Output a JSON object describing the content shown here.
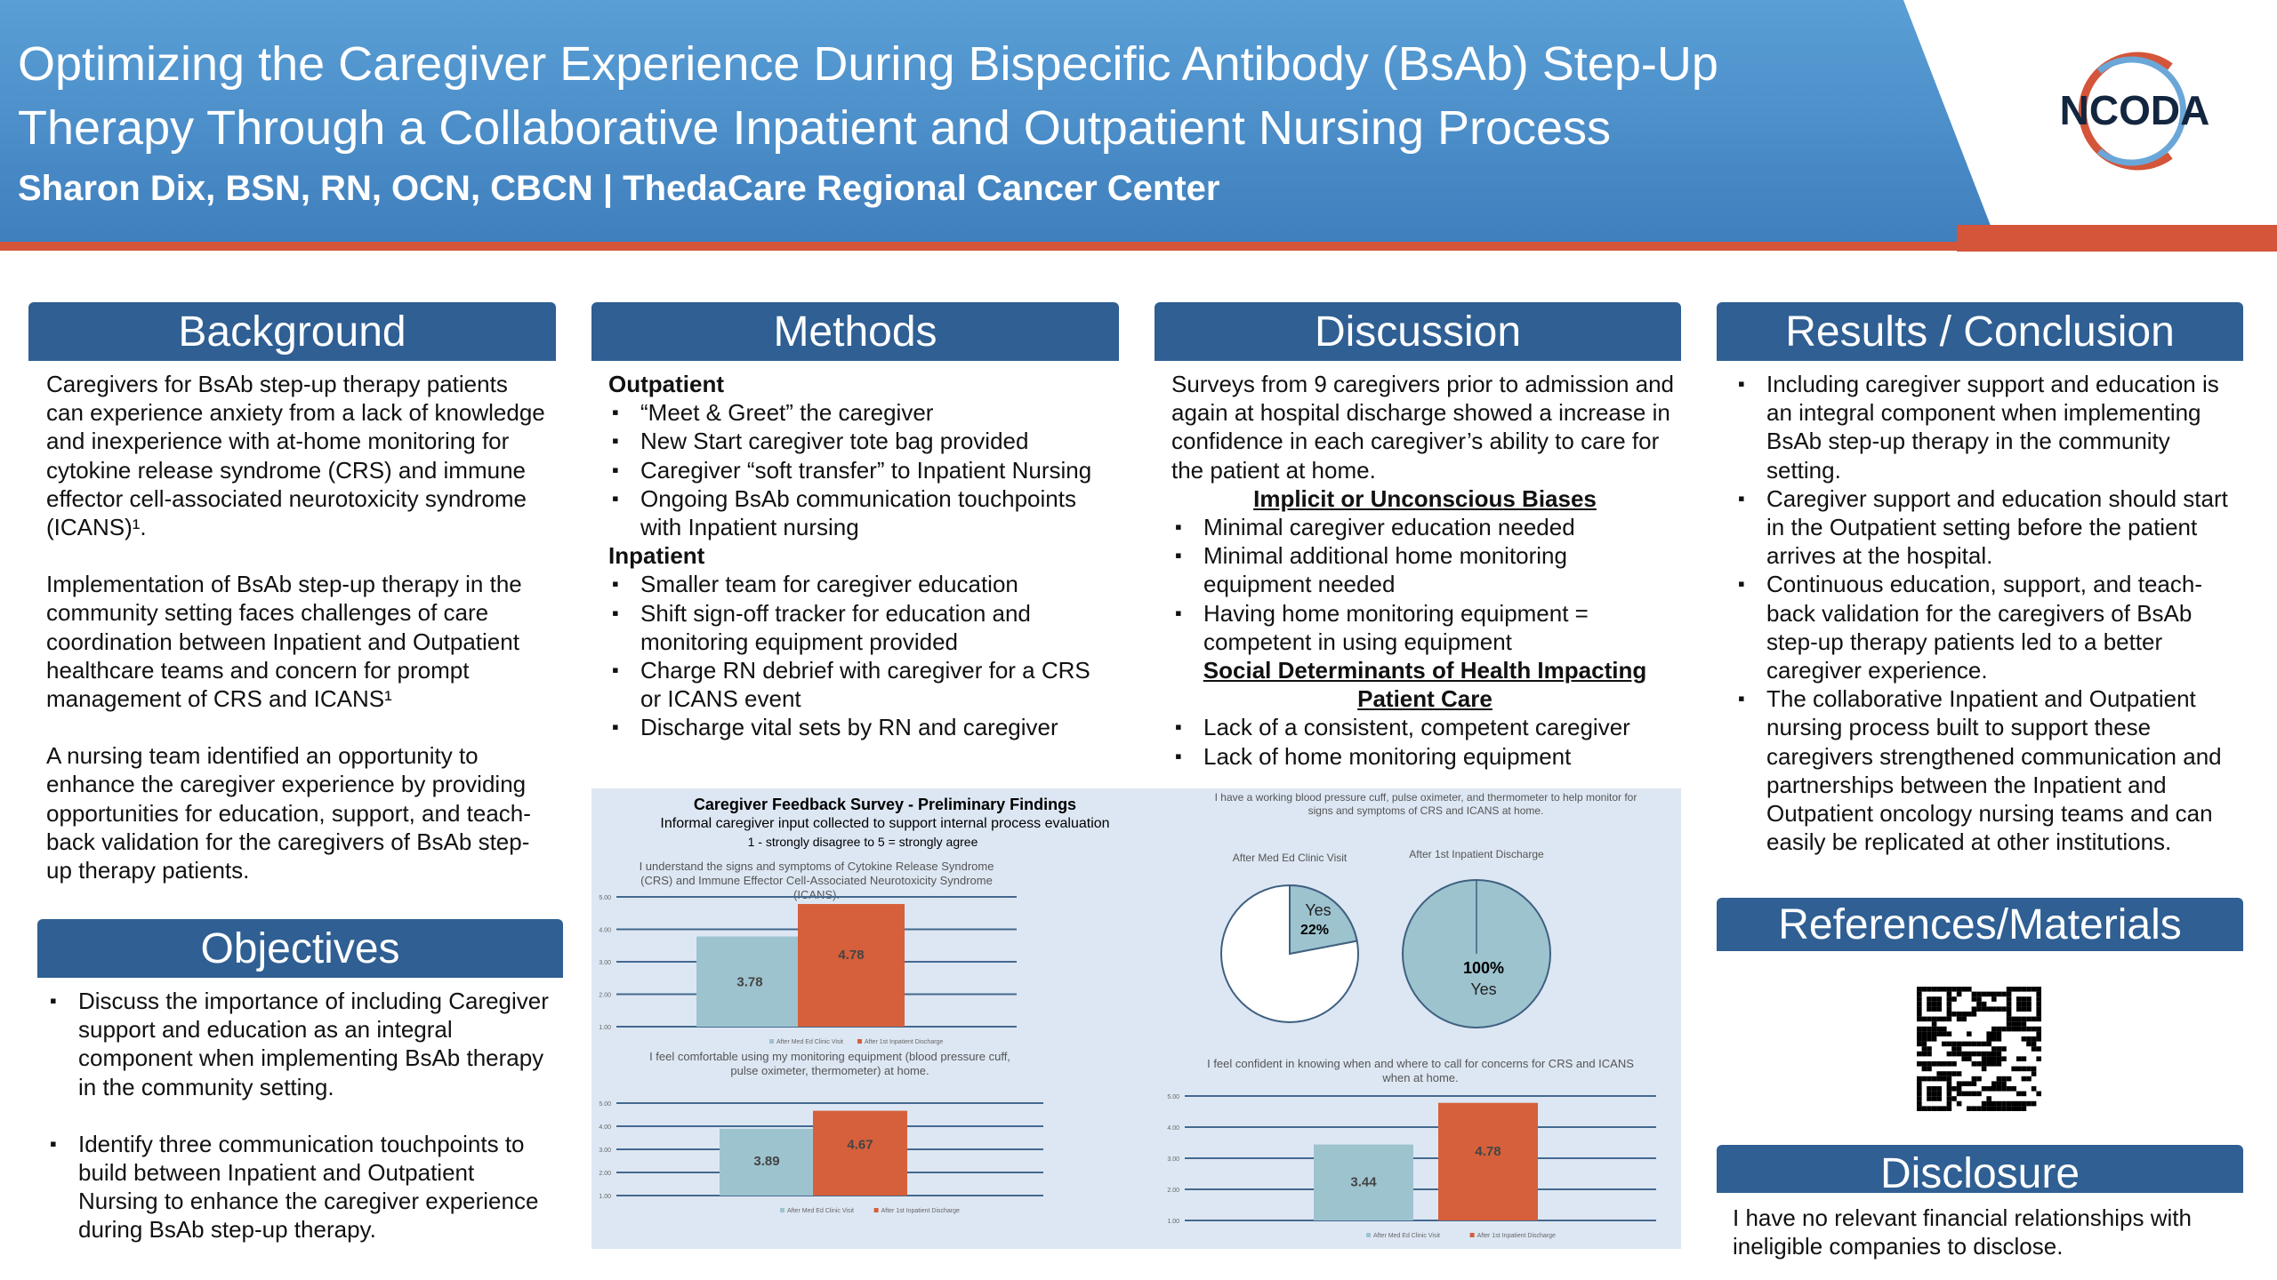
{
  "header": {
    "title": "Optimizing the Caregiver Experience During Bispecific Antibody (BsAb) Step-Up Therapy Through a Collaborative Inpatient and Outpatient Nursing Process",
    "author": "Sharon Dix, BSN, RN, OCN, CBCN | ThedaCare Regional Cancer Center",
    "logo": "NCODA",
    "colors": {
      "blue": "#3f7fbd",
      "orange": "#d4553a",
      "navy": "#2f5f93"
    }
  },
  "background": {
    "heading": "Background",
    "paragraphs": [
      "Caregivers for BsAb step-up therapy patients can experience anxiety from a lack of knowledge and inexperience with at-home monitoring for cytokine release syndrome (CRS) and immune effector cell-associated neurotoxicity syndrome (ICANS)¹.",
      "Implementation of BsAb step-up therapy in the community setting faces challenges of care coordination between Inpatient and Outpatient healthcare teams and concern for prompt management of CRS and ICANS¹",
      "A nursing team identified an opportunity to enhance the caregiver experience by providing opportunities for education, support, and teach-back validation for the caregivers of BsAb step-up therapy patients."
    ]
  },
  "objectives": {
    "heading": "Objectives",
    "items": [
      "Discuss the importance of including Caregiver support and education as an integral component when implementing BsAb therapy in the community setting.",
      "Identify three communication touchpoints to build between Inpatient and Outpatient Nursing to enhance the caregiver experience during BsAb step-up therapy."
    ]
  },
  "methods": {
    "heading": "Methods",
    "outpatient_label": "Outpatient",
    "outpatient": [
      "“Meet & Greet” the caregiver",
      " New Start caregiver tote bag provided",
      "Caregiver “soft transfer” to Inpatient Nursing",
      "Ongoing BsAb communication touchpoints with Inpatient nursing"
    ],
    "inpatient_label": "Inpatient",
    "inpatient": [
      "Smaller team for caregiver education",
      "Shift sign-off tracker for education and monitoring equipment provided",
      "Charge RN debrief with caregiver for a CRS or ICANS event",
      "Discharge vital sets by RN and caregiver"
    ]
  },
  "discussion": {
    "heading": "Discussion",
    "intro": "Surveys from 9 caregivers  prior to admission and again at hospital discharge showed a increase in confidence in each caregiver’s ability to care for the patient at home.",
    "bias_heading": "Implicit or Unconscious Biases",
    "bias_items": [
      "Minimal caregiver education needed",
      "Minimal additional home monitoring equipment needed",
      "Having home monitoring equipment  = competent in using equipment"
    ],
    "sdoh_heading": "Social Determinants of Health Impacting Patient Care",
    "sdoh_items": [
      "Lack of a consistent, competent caregiver",
      "Lack of home monitoring equipment"
    ]
  },
  "results": {
    "heading": "Results / Conclusion",
    "items": [
      "Including caregiver support and education is an integral component when implementing BsAb step-up therapy in the community setting.",
      "Caregiver support and education should start in the Outpatient setting before the patient arrives at the hospital.",
      "Continuous education, support, and teach-back validation for the caregivers of BsAb step-up therapy patients led to a better caregiver experience.",
      "The collaborative Inpatient and Outpatient nursing process built to support these caregivers strengthened communication and partnerships between the Inpatient and Outpatient oncology nursing teams and can easily be replicated at other institutions."
    ]
  },
  "references": {
    "heading": "References/Materials",
    "qr": "qr-code"
  },
  "disclosure": {
    "heading": "Disclosure",
    "text": "I have no relevant financial relationships with ineligible companies to disclose."
  },
  "survey": {
    "title": "Caregiver Feedback Survey - Preliminary Findings",
    "subtitle": "Informal caregiver input collected to support internal process evaluation",
    "scale": "1 - strongly disagree to 5 = strongly agree"
  },
  "chart_data": [
    {
      "type": "bar",
      "title": "I understand the signs and symptoms of Cytokine Release Syndrome (CRS) and Immune Effector Cell-Associated Neurotoxicity Syndrome (ICANS).",
      "categories": [
        "After Med Ed Clinic Visit",
        "After 1st Inpatient Discharge"
      ],
      "values": [
        3.78,
        4.78
      ],
      "colors": [
        "#9dc3cf",
        "#d5603b"
      ],
      "ylim": [
        1,
        5
      ],
      "yticks": [
        "1.00",
        "2.00",
        "3.00",
        "4.00",
        "5.00"
      ],
      "legend": "bottom",
      "grid": true
    },
    {
      "type": "bar",
      "title": "I feel comfortable using my monitoring equipment (blood pressure cuff, pulse oximeter, thermometer) at home.",
      "categories": [
        "After Med Ed Clinic Visit",
        "After 1st Inpatient Discharge"
      ],
      "values": [
        3.89,
        4.67
      ],
      "colors": [
        "#9dc3cf",
        "#d5603b"
      ],
      "ylim": [
        1,
        5
      ],
      "yticks": [
        "1.00",
        "2.00",
        "3.00",
        "4.00",
        "5.00"
      ],
      "legend": "bottom",
      "grid": true
    },
    {
      "type": "pie",
      "title": "I have a working blood pressure cuff, pulse oximeter, and thermometer to help monitor for signs and symptoms of CRS and ICANS at home.",
      "pies": [
        {
          "title": "After Med Ed Clinic Visit",
          "yes_percent": 22,
          "label": "Yes",
          "value_label": "22%"
        },
        {
          "title": "After 1st Inpatient Discharge",
          "yes_percent": 100,
          "label": "Yes",
          "value_label": "100%"
        }
      ]
    },
    {
      "type": "bar",
      "title": "I feel confident in knowing when and where to call for concerns for CRS and ICANS when at home.",
      "categories": [
        "After Med Ed Clinic Visit",
        "After 1st Inpatient Discharge"
      ],
      "values": [
        3.44,
        4.78
      ],
      "colors": [
        "#9dc3cf",
        "#d5603b"
      ],
      "ylim": [
        1,
        5
      ],
      "yticks": [
        "1.00",
        "2.00",
        "3.00",
        "4.00",
        "5.00"
      ],
      "legend": "bottom",
      "grid": true
    }
  ]
}
